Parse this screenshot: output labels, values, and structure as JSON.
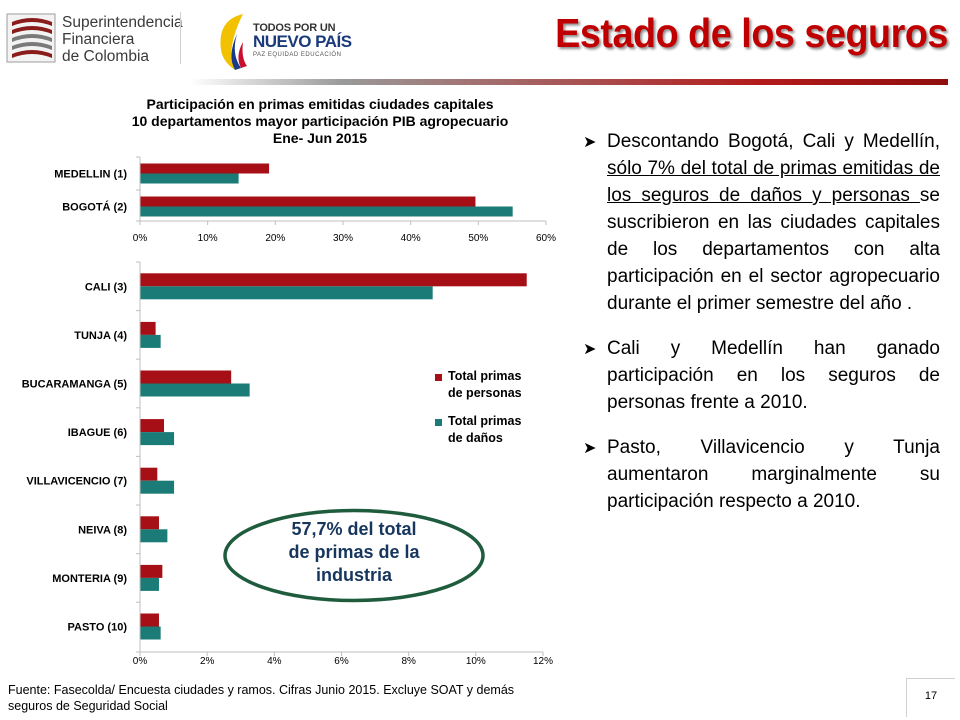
{
  "header": {
    "org_logo": {
      "lines": [
        "Superintendencia",
        "Financiera",
        "de Colombia"
      ]
    },
    "gov_logo": {
      "line1": "TODOS POR UN",
      "line2": "NUEVO PAÍS",
      "line3": "PAZ  EQUIDAD  EDUCACIÓN"
    },
    "title": "Estado de los seguros",
    "colors": {
      "title": "#c00000",
      "rule": "#b31b1b"
    }
  },
  "chart_data": {
    "type": "bar",
    "orientation": "horizontal",
    "title_lines": [
      "Participación en primas emitidas ciudades capitales",
      "10 departamentos mayor participación PIB agropecuario",
      "Ene- Jun 2015"
    ],
    "series": [
      {
        "name": "Total primas de personas",
        "color": "#a50f15"
      },
      {
        "name": "Total primas de daños",
        "color": "#1b7b77"
      }
    ],
    "legend": {
      "position": "right",
      "lines": [
        [
          "Total primas",
          "de personas"
        ],
        [
          "Total primas",
          "de daños"
        ]
      ]
    },
    "panels": [
      {
        "categories": [
          "MEDELLIN (1)",
          "BOGOTÁ (2)"
        ],
        "personas": [
          19,
          49.5
        ],
        "danos": [
          14.5,
          55
        ],
        "xlim": [
          0,
          60
        ],
        "ticks": [
          "0%",
          "10%",
          "20%",
          "30%",
          "40%",
          "50%",
          "60%"
        ]
      },
      {
        "categories": [
          "CALI (3)",
          "TUNJA (4)",
          "BUCARAMANGA (5)",
          "IBAGUE (6)",
          "VILLAVICENCIO (7)",
          "NEIVA (8)",
          "MONTERIA (9)",
          "PASTO (10)"
        ],
        "personas": [
          11.5,
          0.45,
          2.7,
          0.7,
          0.5,
          0.55,
          0.65,
          0.55
        ],
        "danos": [
          8.7,
          0.6,
          3.25,
          1.0,
          1.0,
          0.8,
          0.55,
          0.6
        ],
        "xlim": [
          0,
          12
        ],
        "ticks": [
          "0%",
          "2%",
          "4%",
          "6%",
          "8%",
          "10%",
          "12%"
        ]
      }
    ]
  },
  "callout": {
    "lines": [
      "57,7% del total",
      "de primas de la",
      "industria"
    ],
    "color": "#17365d"
  },
  "bullets": [
    {
      "before": "Descontando Bogotá, Cali y Medellín, ",
      "underlined": "sólo 7% del total de primas emitidas de los seguros de daños y personas ",
      "after": "se suscribieron en las ciudades capitales de los departamentos con alta participación en el sector agropecuario durante el primer semestre del año ."
    },
    {
      "before": "Cali y Medellín han ganado participación en los seguros de personas frente a 2010.",
      "underlined": "",
      "after": ""
    },
    {
      "before": "Pasto, Villavicencio y Tunja aumentaron marginalmente su participación respecto a 2010.",
      "underlined": "",
      "after": ""
    }
  ],
  "footer": {
    "source_lines": [
      "Fuente: Fasecolda/ Encuesta ciudades y ramos. Cifras Junio 2015. Excluye SOAT  y demás",
      "seguros de Seguridad Social"
    ],
    "page_number": "17"
  }
}
